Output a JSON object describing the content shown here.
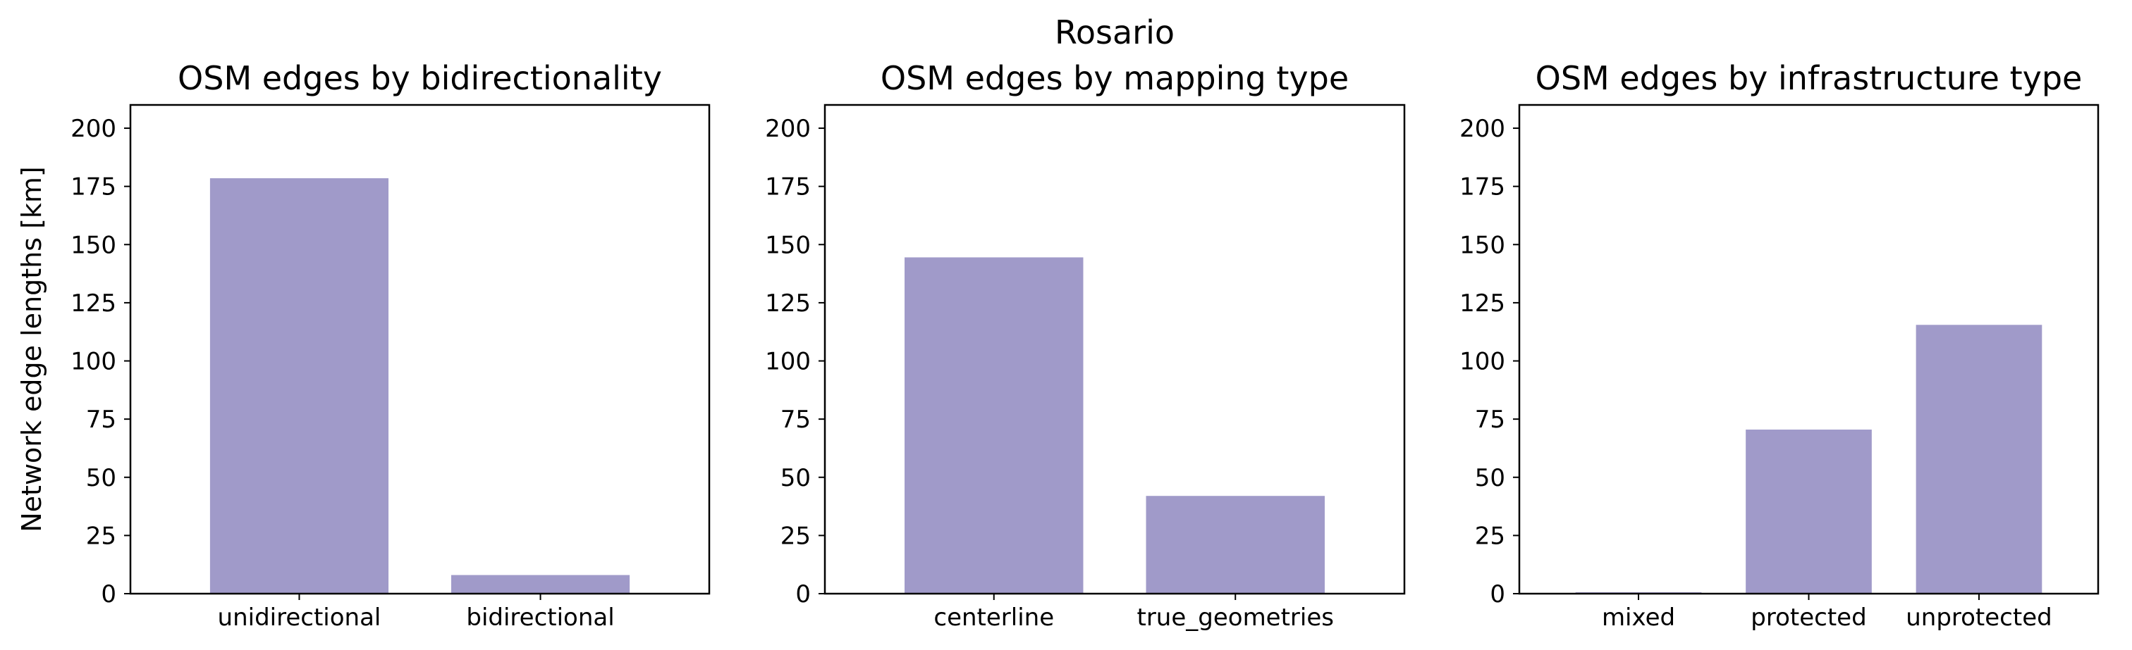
{
  "figure": {
    "suptitle": "Rosario",
    "bar_color": "#a09ac9"
  },
  "chart_data": [
    {
      "type": "bar",
      "title": "OSM edges by bidirectionality",
      "ylabel": "Network edge lengths [km]",
      "xlabel": "",
      "ylim": [
        0,
        210
      ],
      "yticks": [
        0,
        25,
        50,
        75,
        100,
        125,
        150,
        175,
        200
      ],
      "categories": [
        "unidirectional",
        "bidirectional"
      ],
      "values": [
        178.5,
        8
      ]
    },
    {
      "type": "bar",
      "title": "OSM edges by mapping type",
      "ylabel": "",
      "xlabel": "",
      "ylim": [
        0,
        210
      ],
      "yticks": [
        0,
        25,
        50,
        75,
        100,
        125,
        150,
        175,
        200
      ],
      "categories": [
        "centerline",
        "true_geometries"
      ],
      "values": [
        144.5,
        42
      ]
    },
    {
      "type": "bar",
      "title": "OSM edges by infrastructure type",
      "ylabel": "",
      "xlabel": "",
      "ylim": [
        0,
        210
      ],
      "yticks": [
        0,
        25,
        50,
        75,
        100,
        125,
        150,
        175,
        200
      ],
      "categories": [
        "mixed",
        "protected",
        "unprotected"
      ],
      "values": [
        0.6,
        70.5,
        115.5
      ]
    }
  ]
}
